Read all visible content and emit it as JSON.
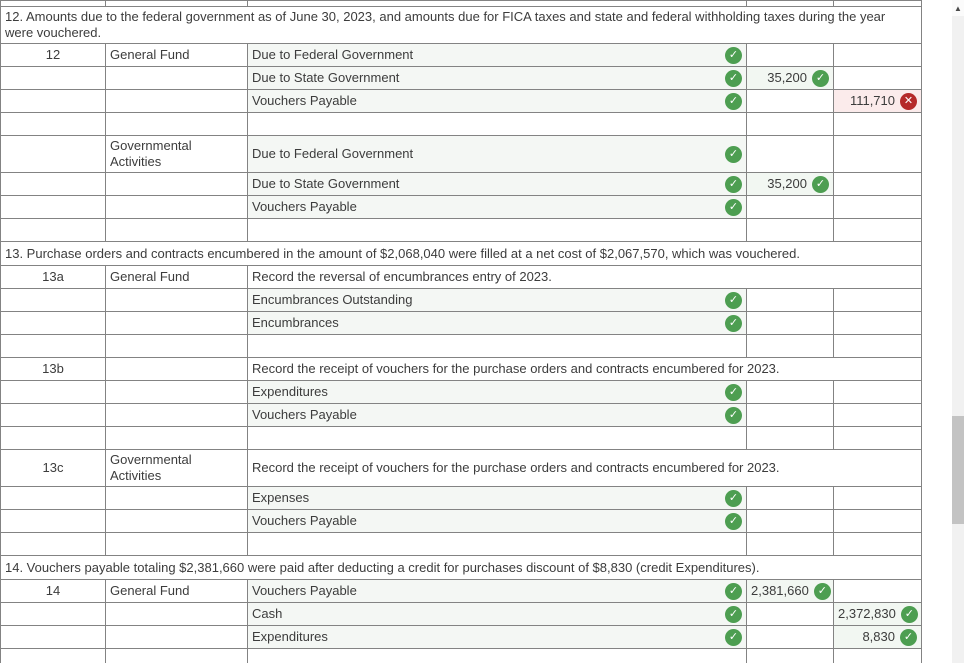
{
  "icons": {
    "check": "✓",
    "error": "✕",
    "scroll_up": "▲"
  },
  "colors": {
    "check_green": "#4d9e51",
    "error_red": "#b52a2a",
    "account_bg": "#f4f7f4",
    "value_ok_bg": "#f2f7f2",
    "value_err_bg": "#fbebeb",
    "border": "#838383"
  },
  "table": {
    "columns": [
      "entry_number",
      "fund",
      "account_title",
      "debit",
      "credit"
    ],
    "rows": [
      {
        "type": "blank",
        "h": "partial"
      },
      {
        "type": "section",
        "h": "hdr2",
        "text": "12. Amounts due to the federal government as of June 30, 2023, and amounts due for FICA taxes and state and federal withholding taxes during the year were vouchered."
      },
      {
        "type": "entry",
        "num": "12",
        "fund": "General Fund",
        "account": "Due to Federal Government",
        "status": "ok"
      },
      {
        "type": "account",
        "account": "Due to State Government",
        "status": "ok",
        "debit": {
          "value": "35,200",
          "status": "ok"
        }
      },
      {
        "type": "account",
        "account": "Vouchers Payable",
        "status": "ok",
        "credit": {
          "value": "111,710",
          "status": "err"
        }
      },
      {
        "type": "blank"
      },
      {
        "type": "entry",
        "h": "tall",
        "num": "",
        "fund": "Governmental Activities",
        "account": "Due to Federal Government",
        "status": "ok"
      },
      {
        "type": "account",
        "account": "Due to State Government",
        "status": "ok",
        "debit": {
          "value": "35,200",
          "status": "ok"
        }
      },
      {
        "type": "account",
        "account": "Vouchers Payable",
        "status": "ok"
      },
      {
        "type": "blank"
      },
      {
        "type": "section",
        "h": "hdr",
        "text": "13. Purchase orders and contracts encumbered in the amount of $2,068,040 were filled at a net cost of $2,067,570, which was vouchered."
      },
      {
        "type": "desc",
        "num": "13a",
        "fund": "General Fund",
        "desc": "Record the reversal of encumbrances entry of 2023."
      },
      {
        "type": "account",
        "account": "Encumbrances Outstanding",
        "status": "ok"
      },
      {
        "type": "account",
        "account": "Encumbrances",
        "status": "ok"
      },
      {
        "type": "blank"
      },
      {
        "type": "desc",
        "num": "13b",
        "fund": "",
        "desc": "Record the receipt of vouchers for the purchase orders and contracts encumbered for 2023."
      },
      {
        "type": "account",
        "account": "Expenditures",
        "status": "ok"
      },
      {
        "type": "account",
        "account": "Vouchers Payable",
        "status": "ok"
      },
      {
        "type": "blank"
      },
      {
        "type": "desc",
        "h": "tall",
        "num": "13c",
        "fund": "Governmental Activities",
        "desc": "Record the receipt of vouchers for the purchase orders and contracts encumbered for 2023."
      },
      {
        "type": "account",
        "account": "Expenses",
        "status": "ok"
      },
      {
        "type": "account",
        "account": "Vouchers Payable",
        "status": "ok"
      },
      {
        "type": "blank"
      },
      {
        "type": "section",
        "h": "hdr",
        "text": "14. Vouchers payable totaling $2,381,660 were paid after deducting a credit for purchases discount of $8,830 (credit Expenditures)."
      },
      {
        "type": "entry",
        "num": "14",
        "fund": "General Fund",
        "account": "Vouchers Payable",
        "status": "ok",
        "debit": {
          "value": "2,381,660",
          "status": "ok"
        }
      },
      {
        "type": "account",
        "account": "Cash",
        "status": "ok",
        "credit": {
          "value": "2,372,830",
          "status": "ok"
        }
      },
      {
        "type": "account",
        "account": "Expenditures",
        "status": "ok",
        "credit": {
          "value": "8,830",
          "status": "ok"
        }
      },
      {
        "type": "blank"
      }
    ]
  }
}
